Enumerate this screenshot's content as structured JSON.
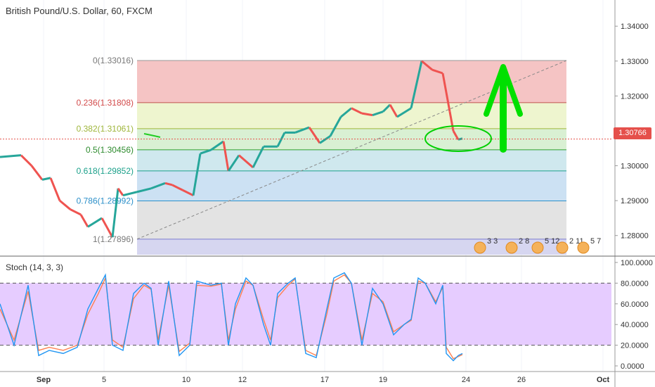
{
  "chart_title": "British Pound/U.S. Dollar, 60, FXCM",
  "last_price": "1.30766",
  "colors": {
    "up": "#26a69a",
    "down": "#ef5350",
    "arrow": "#00e000",
    "ellipse": "#00d000",
    "stoch_k": "#2196f3",
    "stoch_d": "#ff7f50",
    "stoch_band": "#e6ccff"
  },
  "price_axis": {
    "ylim": [
      1.2745,
      1.3475
    ],
    "ticks": [
      "1.34000",
      "1.33000",
      "1.32000",
      "1.31000",
      "1.30000",
      "1.29000",
      "1.28000"
    ]
  },
  "date_axis": [
    "Sep",
    "5",
    "10",
    "12",
    "17",
    "19",
    "24",
    "26",
    "Oct"
  ],
  "fib_levels": [
    {
      "label": "0(1.33016)",
      "value": 1.33016,
      "text_color": "#787878",
      "fill": "#f5c4c4",
      "line": "#999999"
    },
    {
      "label": "0.236(1.31808)",
      "value": 1.31808,
      "text_color": "#d24a4a",
      "fill": "#eef5cf",
      "line": "#c0504d"
    },
    {
      "label": "0.382(1.31061)",
      "value": 1.31061,
      "text_color": "#9fb63b",
      "fill": "#d9f0d3",
      "line": "#9fb63b"
    },
    {
      "label": "0.5(1.30456)",
      "value": 1.30456,
      "text_color": "#2e8b2e",
      "fill": "#cfe8ee",
      "line": "#2ea02e"
    },
    {
      "label": "0.618(1.29852)",
      "value": 1.29852,
      "text_color": "#1aa08a",
      "fill": "#cce1f3",
      "line": "#1aa08a"
    },
    {
      "label": "0.786(1.28992)",
      "value": 1.28992,
      "text_color": "#2b8fc9",
      "fill": "#e3e3e3",
      "line": "#2b8fc9"
    },
    {
      "label": "1(1.27896)",
      "value": 1.27896,
      "text_color": "#787878",
      "fill": "#d6d6f0",
      "line": "#7b7bd0"
    }
  ],
  "stoch": {
    "title": "Stoch (14, 3, 3)",
    "ticks": [
      "100.0000",
      "80.0000",
      "60.0000",
      "40.0000",
      "20.0000",
      "0.0000"
    ],
    "upper_band": 80,
    "lower_band": 20
  },
  "event_badges": [
    "3 3",
    "2 8",
    "5 12",
    "2 11",
    "5 7"
  ],
  "chart_data": {
    "type": "line",
    "title": "British Pound/U.S. Dollar, 60, FXCM",
    "series": [],
    "price_path": [
      [
        0,
        1.3025
      ],
      [
        30,
        1.303
      ],
      [
        45,
        1.3
      ],
      [
        60,
        1.296
      ],
      [
        72,
        1.2965
      ],
      [
        85,
        1.29
      ],
      [
        100,
        1.2875
      ],
      [
        115,
        1.286
      ],
      [
        125,
        1.2825
      ],
      [
        145,
        1.285
      ],
      [
        160,
        1.2795
      ],
      [
        168,
        1.2935
      ],
      [
        175,
        1.2915
      ],
      [
        195,
        1.2925
      ],
      [
        215,
        1.2935
      ],
      [
        235,
        1.295
      ],
      [
        245,
        1.2945
      ],
      [
        260,
        1.293
      ],
      [
        275,
        1.2915
      ],
      [
        285,
        1.3035
      ],
      [
        300,
        1.3045
      ],
      [
        318,
        1.307
      ],
      [
        325,
        1.2985
      ],
      [
        340,
        1.303
      ],
      [
        360,
        1.2995
      ],
      [
        375,
        1.3055
      ],
      [
        395,
        1.3055
      ],
      [
        405,
        1.3095
      ],
      [
        420,
        1.3095
      ],
      [
        440,
        1.311
      ],
      [
        455,
        1.3065
      ],
      [
        470,
        1.3085
      ],
      [
        485,
        1.314
      ],
      [
        500,
        1.3165
      ],
      [
        515,
        1.315
      ],
      [
        530,
        1.3145
      ],
      [
        545,
        1.3155
      ],
      [
        555,
        1.3175
      ],
      [
        565,
        1.314
      ],
      [
        585,
        1.3165
      ],
      [
        600,
        1.33
      ],
      [
        615,
        1.3275
      ],
      [
        630,
        1.3265
      ],
      [
        640,
        1.3155
      ],
      [
        645,
        1.31
      ],
      [
        652,
        1.3075
      ],
      [
        658,
        1.3078
      ]
    ],
    "stoch_k": [
      [
        0,
        60
      ],
      [
        20,
        20
      ],
      [
        40,
        78
      ],
      [
        55,
        10
      ],
      [
        70,
        15
      ],
      [
        90,
        12
      ],
      [
        110,
        18
      ],
      [
        125,
        55
      ],
      [
        140,
        75
      ],
      [
        150,
        88
      ],
      [
        160,
        20
      ],
      [
        175,
        15
      ],
      [
        190,
        70
      ],
      [
        205,
        80
      ],
      [
        215,
        75
      ],
      [
        225,
        20
      ],
      [
        240,
        82
      ],
      [
        255,
        10
      ],
      [
        270,
        20
      ],
      [
        280,
        82
      ],
      [
        300,
        78
      ],
      [
        315,
        80
      ],
      [
        325,
        20
      ],
      [
        335,
        60
      ],
      [
        350,
        85
      ],
      [
        360,
        78
      ],
      [
        375,
        40
      ],
      [
        385,
        20
      ],
      [
        395,
        70
      ],
      [
        410,
        80
      ],
      [
        420,
        85
      ],
      [
        435,
        12
      ],
      [
        450,
        8
      ],
      [
        465,
        55
      ],
      [
        475,
        85
      ],
      [
        490,
        90
      ],
      [
        500,
        80
      ],
      [
        515,
        20
      ],
      [
        530,
        75
      ],
      [
        545,
        60
      ],
      [
        560,
        30
      ],
      [
        575,
        40
      ],
      [
        585,
        45
      ],
      [
        595,
        85
      ],
      [
        605,
        80
      ],
      [
        620,
        60
      ],
      [
        630,
        78
      ],
      [
        635,
        12
      ],
      [
        645,
        5
      ],
      [
        652,
        10
      ],
      [
        658,
        12
      ]
    ],
    "stoch_d": [
      [
        0,
        55
      ],
      [
        20,
        25
      ],
      [
        40,
        72
      ],
      [
        55,
        15
      ],
      [
        70,
        18
      ],
      [
        90,
        15
      ],
      [
        110,
        20
      ],
      [
        125,
        50
      ],
      [
        140,
        70
      ],
      [
        150,
        85
      ],
      [
        160,
        25
      ],
      [
        175,
        18
      ],
      [
        190,
        65
      ],
      [
        205,
        78
      ],
      [
        215,
        74
      ],
      [
        225,
        25
      ],
      [
        240,
        78
      ],
      [
        255,
        14
      ],
      [
        270,
        22
      ],
      [
        280,
        78
      ],
      [
        300,
        77
      ],
      [
        315,
        79
      ],
      [
        325,
        25
      ],
      [
        335,
        55
      ],
      [
        350,
        82
      ],
      [
        360,
        78
      ],
      [
        375,
        45
      ],
      [
        385,
        25
      ],
      [
        395,
        66
      ],
      [
        410,
        78
      ],
      [
        420,
        84
      ],
      [
        435,
        15
      ],
      [
        450,
        10
      ],
      [
        465,
        50
      ],
      [
        475,
        82
      ],
      [
        490,
        88
      ],
      [
        500,
        80
      ],
      [
        515,
        25
      ],
      [
        530,
        70
      ],
      [
        545,
        62
      ],
      [
        560,
        33
      ],
      [
        575,
        40
      ],
      [
        585,
        44
      ],
      [
        595,
        82
      ],
      [
        605,
        80
      ],
      [
        620,
        62
      ],
      [
        630,
        76
      ],
      [
        635,
        18
      ],
      [
        645,
        7
      ],
      [
        652,
        9
      ],
      [
        658,
        11
      ]
    ]
  }
}
